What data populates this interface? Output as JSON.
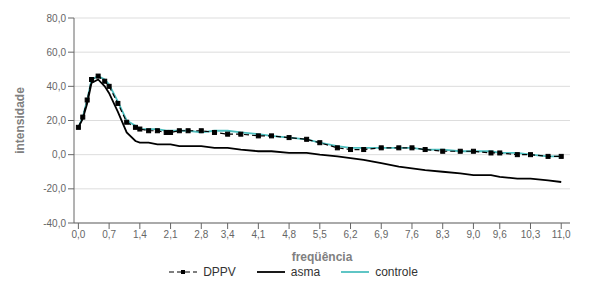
{
  "chart_data": {
    "type": "line",
    "xlabel": "freqüência",
    "ylabel": "intensidade",
    "x": [
      0.0,
      0.1,
      0.2,
      0.3,
      0.45,
      0.6,
      0.7,
      0.9,
      1.1,
      1.3,
      1.4,
      1.6,
      1.8,
      2.0,
      2.1,
      2.3,
      2.5,
      2.8,
      3.1,
      3.4,
      3.7,
      4.1,
      4.4,
      4.8,
      5.2,
      5.5,
      5.9,
      6.2,
      6.5,
      6.9,
      7.3,
      7.6,
      7.9,
      8.3,
      8.7,
      9.0,
      9.4,
      9.6,
      10.0,
      10.3,
      10.7,
      11.0
    ],
    "series": [
      {
        "name": "DPPV",
        "color": "#000000",
        "line_style": "dashed",
        "marker": "square",
        "values": [
          16,
          22,
          32,
          44,
          46,
          43,
          40,
          30,
          19,
          16,
          15,
          14,
          14,
          13,
          13,
          14,
          14,
          14,
          13,
          12,
          12,
          11,
          11,
          10,
          9,
          7,
          4,
          3,
          3,
          4,
          4,
          4,
          3,
          2,
          2,
          2,
          1,
          1,
          0,
          0,
          -1,
          -1
        ]
      },
      {
        "name": "asma",
        "color": "#000000",
        "line_style": "solid",
        "values": [
          16,
          21,
          30,
          42,
          44,
          40,
          36,
          25,
          13,
          8,
          7,
          7,
          6,
          6,
          6,
          5,
          5,
          5,
          4,
          4,
          3,
          2,
          2,
          1,
          1,
          0,
          -1,
          -2,
          -3,
          -5,
          -7,
          -8,
          -9,
          -10,
          -11,
          -12,
          -12,
          -13,
          -14,
          -14,
          -15,
          -16
        ]
      },
      {
        "name": "controle",
        "color": "#4dbfbf",
        "line_style": "solid",
        "values": [
          16,
          22,
          32,
          44,
          46,
          44,
          41,
          31,
          20,
          17,
          15,
          15,
          15,
          14,
          14,
          14,
          14,
          13,
          14,
          14,
          13,
          12,
          11,
          10,
          9,
          7,
          5,
          4,
          4,
          4,
          4,
          4,
          3,
          3,
          2,
          2,
          2,
          1,
          1,
          0,
          -1,
          -1
        ]
      }
    ],
    "xlim": [
      -0.1,
      11.2
    ],
    "xticks": [
      {
        "value": 0.0,
        "label": "0,0"
      },
      {
        "value": 0.7,
        "label": "0,7"
      },
      {
        "value": 1.4,
        "label": "1,4"
      },
      {
        "value": 2.1,
        "label": "2,1"
      },
      {
        "value": 2.8,
        "label": "2,8"
      },
      {
        "value": 3.4,
        "label": "3,4"
      },
      {
        "value": 4.1,
        "label": "4,1"
      },
      {
        "value": 4.8,
        "label": "4,8"
      },
      {
        "value": 5.5,
        "label": "5,5"
      },
      {
        "value": 6.2,
        "label": "6,2"
      },
      {
        "value": 6.9,
        "label": "6,9"
      },
      {
        "value": 7.6,
        "label": "7,6"
      },
      {
        "value": 8.3,
        "label": "8,3"
      },
      {
        "value": 9.0,
        "label": "9,0"
      },
      {
        "value": 9.6,
        "label": "9,6"
      },
      {
        "value": 10.3,
        "label": "10,3"
      },
      {
        "value": 11.0,
        "label": "11,0"
      }
    ],
    "ylim": [
      -40,
      80
    ],
    "yticks": [
      {
        "value": -40,
        "label": "-40,0"
      },
      {
        "value": -20,
        "label": "-20,0"
      },
      {
        "value": 0,
        "label": "0,0"
      },
      {
        "value": 20,
        "label": "20,0"
      },
      {
        "value": 40,
        "label": "40,0"
      },
      {
        "value": 60,
        "label": "60,0"
      },
      {
        "value": 80,
        "label": "80,0"
      }
    ],
    "grid": true,
    "legend": "bottom"
  }
}
